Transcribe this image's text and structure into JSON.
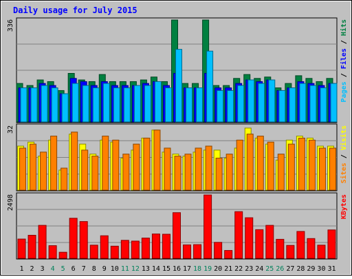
{
  "chart_data": {
    "type": "bar",
    "title": "Daily usage for July 2015",
    "categories": [
      "1",
      "2",
      "3",
      "4",
      "5",
      "6",
      "7",
      "8",
      "9",
      "10",
      "11",
      "12",
      "13",
      "14",
      "15",
      "16",
      "17",
      "18",
      "19",
      "20",
      "21",
      "22",
      "23",
      "24",
      "25",
      "26",
      "27",
      "28",
      "29",
      "30",
      "31"
    ],
    "weekend_days": [
      "4",
      "5",
      "11",
      "12",
      "18",
      "19",
      "25",
      "26"
    ],
    "panels": [
      {
        "id": "hits-files-pages",
        "ymax_label": "336",
        "ylim": [
          0,
          336
        ],
        "scale": "log",
        "axis_labels": [
          "Pages",
          "Files",
          "Hits"
        ],
        "axis_label_separator": " / ",
        "series": [
          {
            "name": "Hits",
            "color": "#008040",
            "values": [
              8,
              7,
              10,
              9,
              5,
              15,
              10,
              9,
              14,
              9,
              9,
              9,
              10,
              12,
              9,
              336,
              8,
              8,
              336,
              7,
              7,
              11,
              14,
              11,
              12,
              6,
              8,
              13,
              11,
              9,
              11
            ]
          },
          {
            "name": "Files",
            "color": "#0000ff",
            "values": [
              6,
              6,
              8,
              7,
              4,
              11,
              9,
              7,
              9,
              7,
              7,
              7,
              8,
              9,
              7,
              15,
              6,
              6,
              15,
              6,
              6,
              8,
              10,
              9,
              10,
              5,
              6,
              9,
              8,
              7,
              8
            ]
          },
          {
            "name": "Pages",
            "color": "#00bfff",
            "values": [
              6,
              6,
              7,
              6,
              4,
              8,
              7,
              6,
              8,
              6,
              6,
              7,
              7,
              9,
              6,
              62,
              6,
              6,
              56,
              5,
              5,
              7,
              10,
              8,
              10,
              5,
              6,
              8,
              7,
              6,
              8
            ]
          }
        ]
      },
      {
        "id": "visits-sites",
        "ymax_label": "32",
        "ylim": [
          0,
          32
        ],
        "scale": "linear",
        "axis_labels": [
          "Sites",
          "Visits"
        ],
        "axis_label_separator": " / ",
        "series": [
          {
            "name": "Visits",
            "color": "#ffff00",
            "values": [
              22,
              24,
              17,
              25,
              10,
              28,
              23,
              18,
              25,
              24,
              16,
              20,
              26,
              30,
              19,
              18,
              17,
              19,
              20,
              20,
              16,
              21,
              31,
              26,
              23,
              15,
              25,
              27,
              26,
              22,
              22
            ]
          },
          {
            "name": "Sites",
            "color": "#ff8000",
            "values": [
              21,
              23,
              19,
              27,
              11,
              29,
              20,
              17,
              27,
              25,
              18,
              23,
              26,
              30,
              21,
              17,
              18,
              21,
              22,
              16,
              18,
              25,
              28,
              27,
              24,
              18,
              23,
              26,
              25,
              21,
              21
            ]
          }
        ]
      },
      {
        "id": "kbytes",
        "ymax_label": "2498",
        "ylim": [
          0,
          2498
        ],
        "scale": "linear",
        "axis_labels": [
          "KBytes"
        ],
        "axis_label_separator": "",
        "series": [
          {
            "name": "KBytes",
            "color": "#ff0000",
            "values": [
              760,
              910,
              1300,
              500,
              240,
              1580,
              1450,
              520,
              890,
              480,
              710,
              680,
              800,
              960,
              950,
              1800,
              530,
              540,
              2498,
              630,
              310,
              1840,
              1600,
              1130,
              1300,
              750,
              510,
              1060,
              780,
              520,
              1120
            ]
          }
        ]
      }
    ]
  }
}
